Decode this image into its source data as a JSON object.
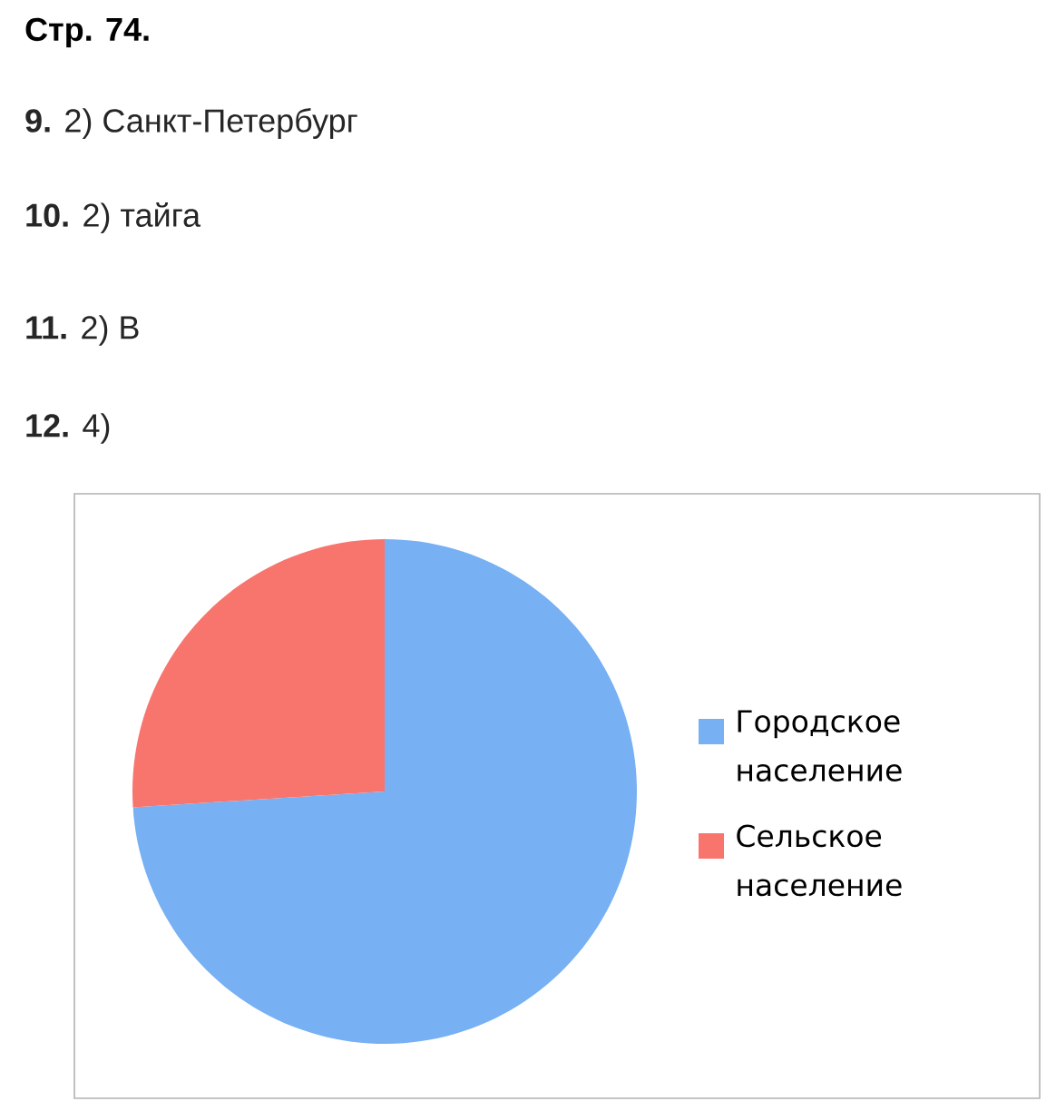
{
  "chart_data": {
    "type": "pie",
    "title": "Стр. 74.",
    "annotations": [
      "**9.** 2) Санкт-Петербург",
      "**10.** 2) тайга",
      "**11.** 2) В",
      "**12.** 4)"
    ],
    "categories": [
      "Городское население",
      "Сельское население"
    ],
    "values": [
      74,
      26
    ],
    "colors": [
      "#77b0f3",
      "#f8756e"
    ],
    "legend": "right"
  }
}
